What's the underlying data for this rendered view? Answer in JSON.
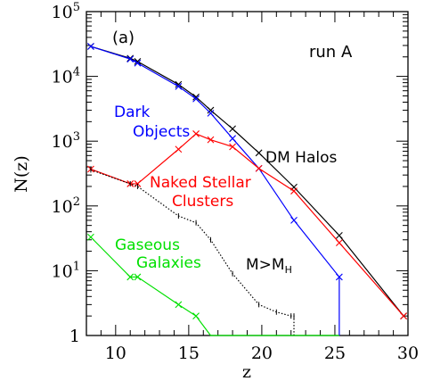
{
  "chart_data": {
    "type": "line",
    "panel_label": "(a)",
    "run_label": "run A",
    "xlabel": "z",
    "ylabel": "N(z)",
    "xlim": [
      8,
      30
    ],
    "ylim_log10": [
      0,
      5
    ],
    "log_y": true,
    "x_ticks": [
      10,
      15,
      20,
      25,
      30
    ],
    "y_ticks": [
      {
        "exp": 0,
        "label": "1"
      },
      {
        "exp": 1,
        "label": "10",
        "sup": "1"
      },
      {
        "exp": 2,
        "label": "10",
        "sup": "2"
      },
      {
        "exp": 3,
        "label": "10",
        "sup": "3"
      },
      {
        "exp": 4,
        "label": "10",
        "sup": "4"
      },
      {
        "exp": 5,
        "label": "10",
        "sup": "5"
      }
    ],
    "series": [
      {
        "key": "dm",
        "color": "#000000",
        "dash": false,
        "marker": "x",
        "label_lines": [
          "DM Halos"
        ],
        "points": [
          [
            8.3,
            29000
          ],
          [
            11,
            19000
          ],
          [
            11.5,
            17000
          ],
          [
            14.3,
            7500
          ],
          [
            15.5,
            4800
          ],
          [
            16.5,
            3000
          ],
          [
            18,
            1550
          ],
          [
            19.8,
            660
          ],
          [
            22.2,
            195
          ],
          [
            25.3,
            35
          ],
          [
            29.7,
            2
          ]
        ]
      },
      {
        "key": "dark",
        "color": "#0000ff",
        "dash": false,
        "marker": "x",
        "label_lines": [
          "Dark",
          "Objects"
        ],
        "points": [
          [
            8.3,
            29000
          ],
          [
            11,
            18500
          ],
          [
            11.5,
            16000
          ],
          [
            14.3,
            7000
          ],
          [
            15.5,
            4500
          ],
          [
            16.5,
            2700
          ],
          [
            18,
            1100
          ],
          [
            19.8,
            380
          ],
          [
            22.2,
            60
          ],
          [
            25.3,
            8
          ],
          [
            25.3,
            1
          ]
        ]
      },
      {
        "key": "naked",
        "color": "#ff0000",
        "dash": false,
        "marker": "x",
        "label_lines": [
          "Naked Stellar",
          "Clusters"
        ],
        "points": [
          [
            8.3,
            370
          ],
          [
            11,
            220
          ],
          [
            11.5,
            220
          ],
          [
            14.3,
            750
          ],
          [
            15.5,
            1300
          ],
          [
            16.5,
            1050
          ],
          [
            18,
            820
          ],
          [
            19.8,
            380
          ],
          [
            22.2,
            170
          ],
          [
            25.3,
            27
          ],
          [
            29.7,
            2
          ]
        ]
      },
      {
        "key": "mh",
        "color": "#000000",
        "dash": true,
        "marker": "tick",
        "label_lines": [
          "M>M"
        ],
        "label_sub": "H",
        "points": [
          [
            8.3,
            360
          ],
          [
            11,
            220
          ],
          [
            11.5,
            200
          ],
          [
            14.3,
            70
          ],
          [
            15.5,
            55
          ],
          [
            16.5,
            30
          ],
          [
            18,
            9
          ],
          [
            19.8,
            3
          ],
          [
            21,
            2.3
          ],
          [
            22,
            2
          ],
          [
            22.2,
            2
          ],
          [
            22.2,
            1
          ]
        ]
      },
      {
        "key": "gas",
        "color": "#00e000",
        "dash": false,
        "marker": "x",
        "label_lines": [
          "Gaseous",
          "Galaxies"
        ],
        "points": [
          [
            8.3,
            33
          ],
          [
            11,
            8
          ],
          [
            11.5,
            8
          ],
          [
            14.3,
            3
          ],
          [
            15.5,
            2
          ],
          [
            16.5,
            1
          ],
          [
            18,
            1
          ],
          [
            19.8,
            1
          ],
          [
            22.2,
            1
          ],
          [
            25.3,
            1
          ]
        ]
      }
    ]
  }
}
